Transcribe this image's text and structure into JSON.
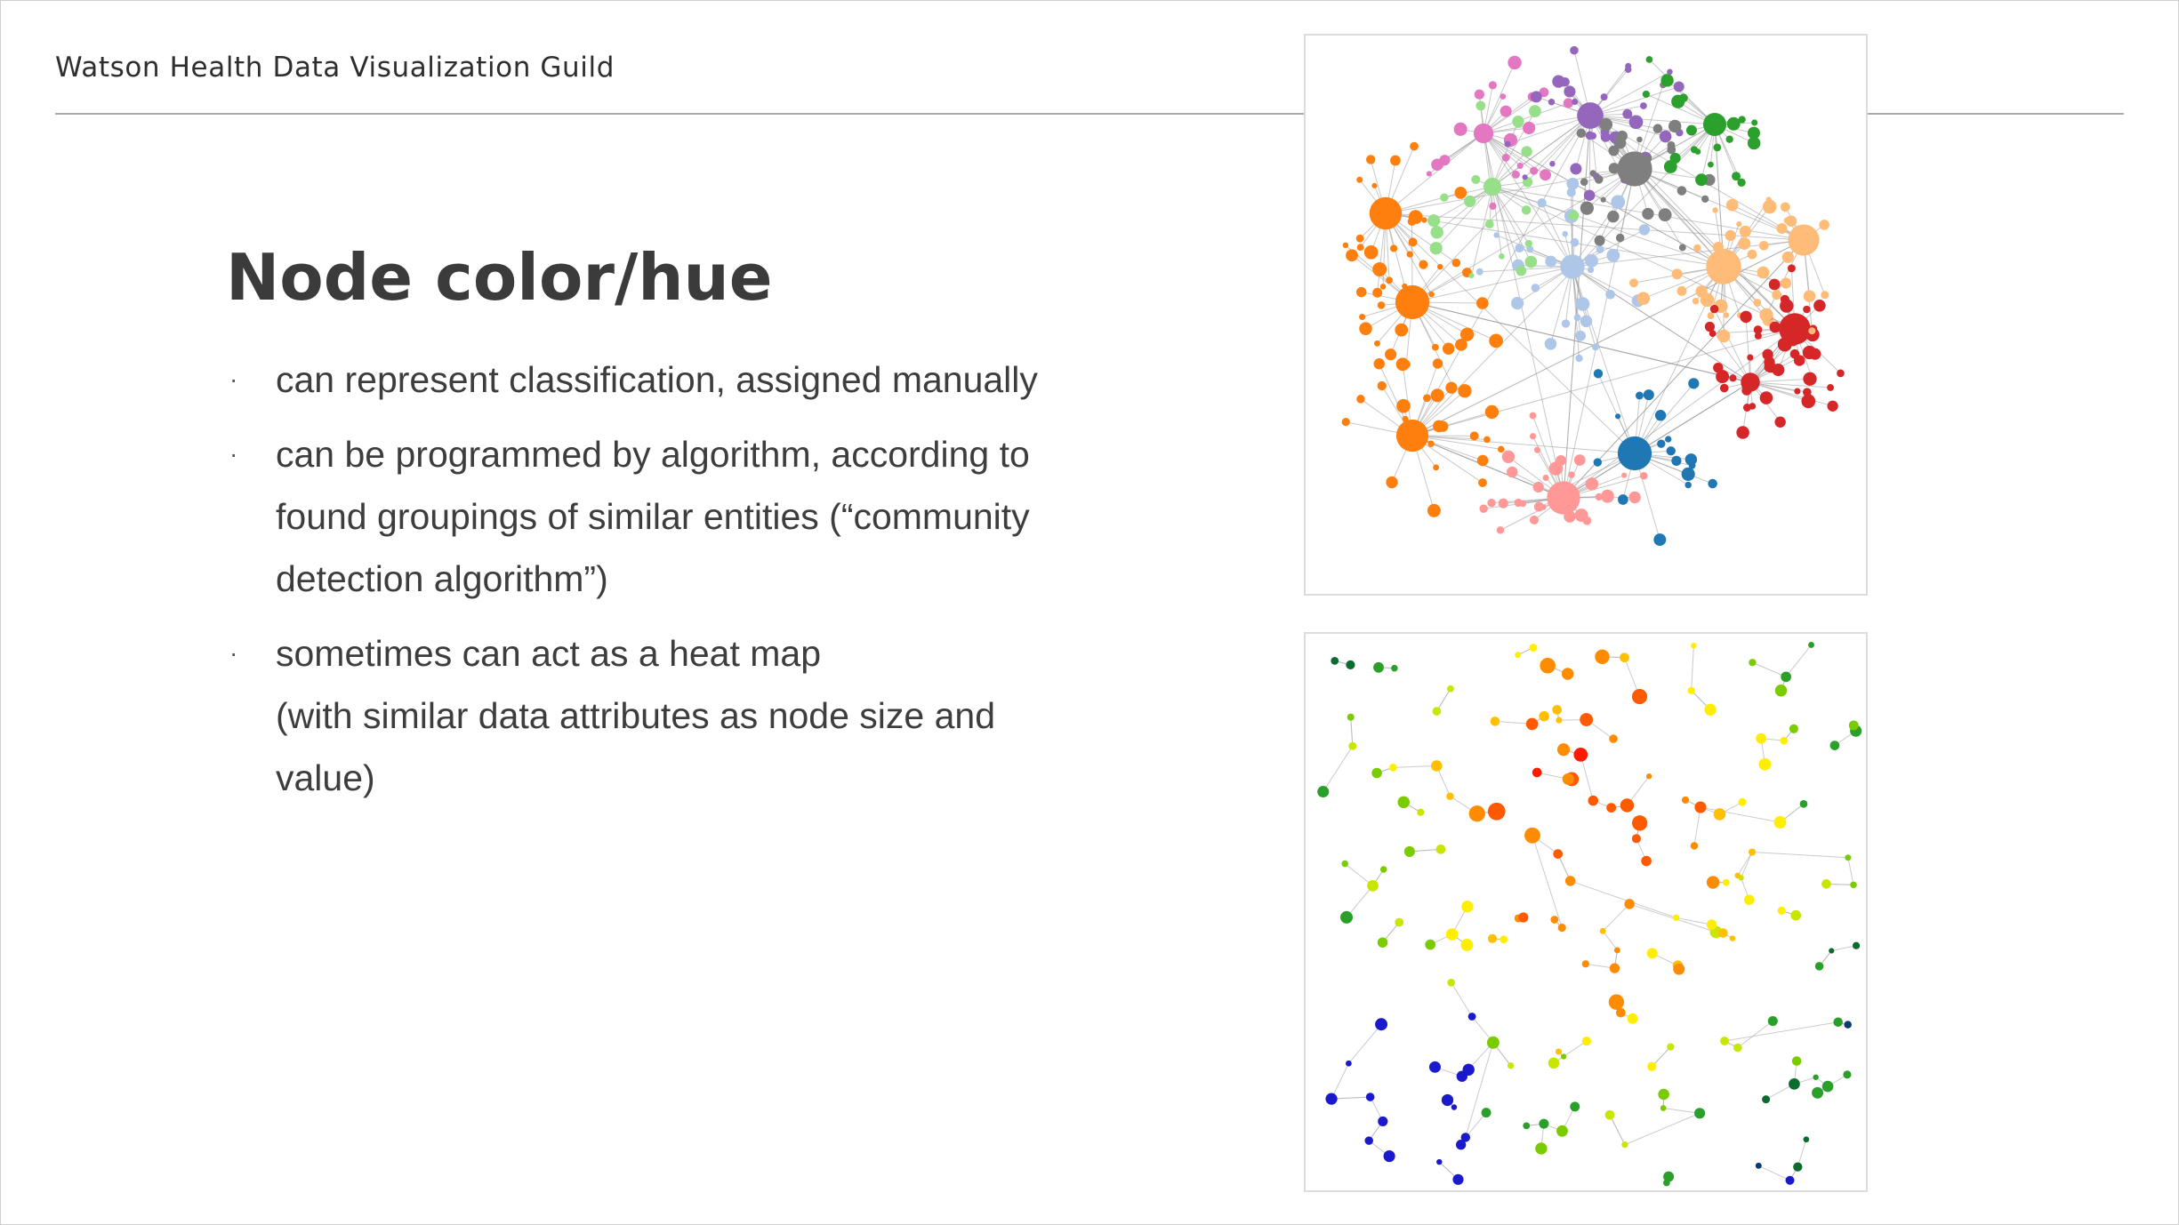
{
  "header": {
    "title": "Watson Health Data Visualization Guild"
  },
  "slide": {
    "title": "Node color/hue",
    "bullets": [
      {
        "lines": [
          "can represent classification, assigned manually"
        ]
      },
      {
        "lines": [
          "can be programmed by algorithm, according to",
          "found groupings of similar entities (“community",
          "detection algorithm”)"
        ]
      },
      {
        "lines": [
          "sometimes can act as a heat map",
          "(with similar data attributes as node size and",
          "value)"
        ]
      }
    ]
  },
  "figures": {
    "top": {
      "kind": "network-graph-community-colors",
      "colors": [
        "#ff7f0e",
        "#aec7e8",
        "#1f77b4",
        "#98df8a",
        "#ffbb78",
        "#ff9896",
        "#e377c2",
        "#c5b0d5",
        "#9467bd",
        "#7f7f7f",
        "#2ca02c",
        "#d62728",
        "#bcbd22",
        "#dbdb8d"
      ]
    },
    "bottom": {
      "kind": "network-graph-heat-map-colors",
      "colors": [
        "#ff1a00",
        "#ff5a00",
        "#ff8c00",
        "#ffc000",
        "#ffee00",
        "#c8e600",
        "#7acc00",
        "#2aa02a",
        "#0e6b2e",
        "#0a3a6e",
        "#1a1acc"
      ]
    }
  }
}
